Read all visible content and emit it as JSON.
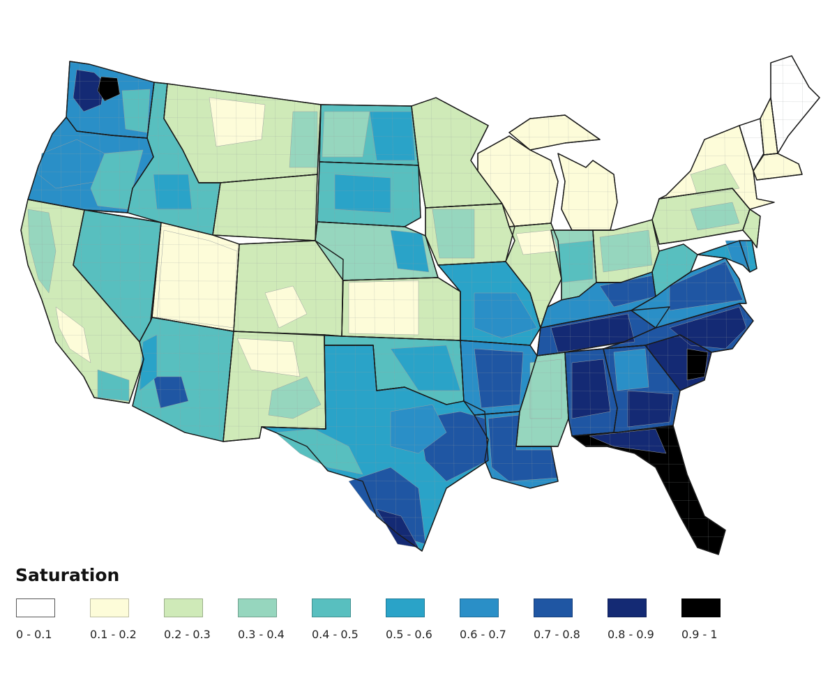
{
  "map": {
    "boundary_color": "#1a1a1a",
    "county_line_color": "#9aa0a0",
    "fill_by_state": {
      "WA": "#2a8fc7",
      "OR": "#2a8fc7",
      "CA": "#cfeab8",
      "NV": "#58bfbf",
      "ID": "#58bfbf",
      "MT": "#cfeab8",
      "WY": "#cfeab8",
      "UT": "#fdfcd9",
      "CO": "#cfeab8",
      "AZ": "#58bfbf",
      "NM": "#cfeab8",
      "ND": "#58bfbf",
      "SD": "#58bfbf",
      "NE": "#96d6be",
      "KS": "#cfeab8",
      "OK": "#58bfbf",
      "TX": "#2aa3c8",
      "MN": "#cfeab8",
      "IA": "#cfeab8",
      "MO": "#2aa3c8",
      "AR": "#2a8fc7",
      "LA": "#2a8fc7",
      "WI": "#fdfcd9",
      "MI": "#fdfcd9",
      "IL": "#cfeab8",
      "IN": "#96d6be",
      "OH": "#cfeab8",
      "KY": "#2a8fc7",
      "TN": "#1f56a3",
      "MS": "#96d6be",
      "AL": "#1f56a3",
      "GA": "#1f56a3",
      "FL": "#000000",
      "SC": "#142a74",
      "NC": "#1f56a3",
      "VA": "#2a8fc7",
      "WV": "#58bfbf",
      "PA": "#cfeab8",
      "NY": "#fdfcd9",
      "VT": "#ffffff",
      "NH": "#fdfcd9",
      "ME": "#ffffff",
      "MA": "#fdfcd9",
      "MD": "#2aa3c8",
      "DE": "#2aa3c8",
      "NJ": "#cfeab8"
    }
  },
  "legend": {
    "title": "Saturation",
    "items": [
      {
        "label": "0 - 0.1",
        "color": "#ffffff"
      },
      {
        "label": "0.1 - 0.2",
        "color": "#fdfcd9"
      },
      {
        "label": "0.2 - 0.3",
        "color": "#cfeab8"
      },
      {
        "label": "0.3 - 0.4",
        "color": "#96d6be"
      },
      {
        "label": "0.4 - 0.5",
        "color": "#58bfbf"
      },
      {
        "label": "0.5 - 0.6",
        "color": "#2aa3c8"
      },
      {
        "label": "0.6 - 0.7",
        "color": "#2a8fc7"
      },
      {
        "label": "0.7 - 0.8",
        "color": "#1f56a3"
      },
      {
        "label": "0.8 - 0.9",
        "color": "#142a74"
      },
      {
        "label": "0.9 - 1",
        "color": "#000000"
      }
    ]
  }
}
